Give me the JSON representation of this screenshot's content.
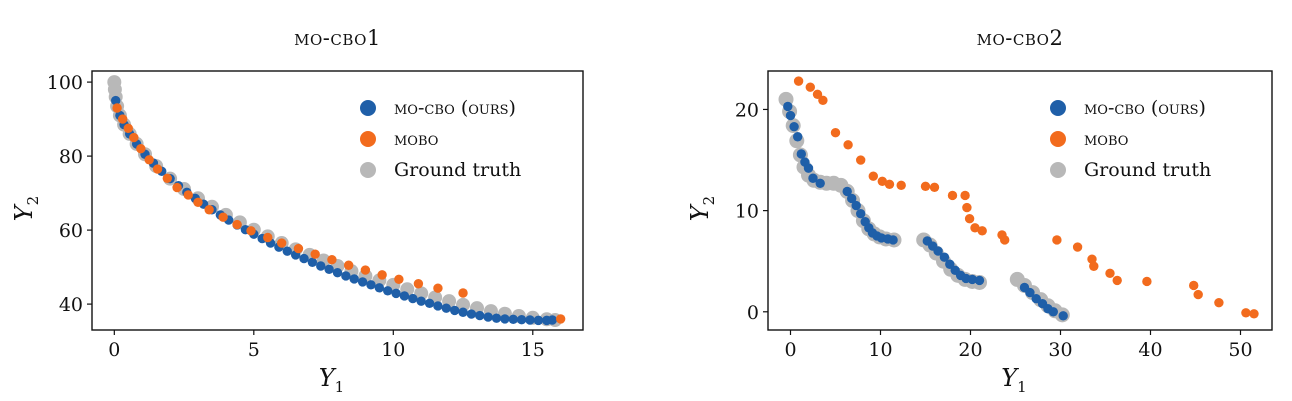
{
  "chart_data": [
    {
      "type": "scatter",
      "title": "MO-CBO1",
      "xlabel": "Y",
      "xlabel_sub": "1",
      "ylabel": "Y",
      "ylabel_sub": "2",
      "xlim": [
        -0.8,
        16.8
      ],
      "ylim": [
        33,
        103
      ],
      "xticks": [
        0,
        5,
        10,
        15
      ],
      "yticks": [
        40,
        60,
        80,
        100
      ],
      "legend_position": "top-right",
      "series": [
        {
          "name": "MO-CBO (ours)",
          "color": "#1f5fa8",
          "x": [
            0.05,
            0.2,
            0.35,
            0.55,
            0.8,
            1.1,
            1.4,
            1.7,
            2.0,
            2.3,
            2.6,
            2.9,
            3.2,
            3.5,
            3.8,
            4.1,
            4.4,
            4.7,
            5.0,
            5.3,
            5.6,
            5.9,
            6.2,
            6.5,
            6.8,
            7.1,
            7.4,
            7.7,
            8.0,
            8.3,
            8.6,
            8.9,
            9.2,
            9.5,
            9.8,
            10.1,
            10.4,
            10.7,
            11.0,
            11.3,
            11.6,
            11.9,
            12.2,
            12.5,
            12.8,
            13.1,
            13.4,
            13.7,
            14.0,
            14.3,
            14.6,
            14.9,
            15.2,
            15.5,
            15.7
          ],
          "y": [
            95.0,
            91.0,
            88.5,
            86.0,
            83.3,
            80.5,
            78.1,
            75.9,
            73.9,
            72.0,
            70.2,
            68.6,
            67.0,
            65.5,
            64.1,
            62.7,
            61.4,
            60.1,
            58.9,
            57.7,
            56.5,
            55.4,
            54.3,
            53.3,
            52.3,
            51.3,
            50.3,
            49.4,
            48.5,
            47.6,
            46.8,
            46.0,
            45.2,
            44.4,
            43.6,
            42.9,
            42.2,
            41.5,
            40.8,
            40.2,
            39.5,
            38.9,
            38.3,
            37.8,
            37.3,
            36.9,
            36.5,
            36.2,
            36.0,
            35.9,
            35.8,
            35.7,
            35.6,
            35.6,
            35.7
          ]
        },
        {
          "name": "MOBO",
          "color": "#f26b1d",
          "x": [
            0.1,
            0.3,
            0.5,
            0.7,
            0.95,
            1.25,
            1.55,
            1.9,
            2.25,
            2.65,
            3.0,
            3.4,
            3.9,
            4.4,
            4.9,
            5.5,
            6.0,
            6.6,
            7.2,
            7.8,
            8.4,
            9.0,
            9.6,
            10.2,
            10.9,
            11.6,
            12.5,
            16.0
          ],
          "y": [
            93.0,
            90.0,
            87.5,
            85.0,
            82.0,
            79.0,
            76.5,
            74.0,
            71.5,
            69.5,
            67.5,
            65.5,
            63.5,
            61.5,
            59.8,
            58.0,
            56.5,
            55.0,
            53.5,
            52.0,
            50.5,
            49.2,
            47.9,
            46.7,
            45.5,
            44.3,
            43.0,
            36.0
          ]
        },
        {
          "name": "Ground truth",
          "color": "#b8b8b8",
          "x": [
            0.0,
            0.02,
            0.05,
            0.1,
            0.2,
            0.35,
            0.55,
            0.8,
            1.1,
            1.5,
            2.0,
            2.5,
            3.0,
            3.5,
            4.0,
            4.5,
            5.0,
            5.5,
            6.0,
            6.5,
            7.0,
            7.5,
            8.0,
            8.5,
            9.0,
            9.5,
            10.0,
            10.5,
            11.0,
            11.5,
            12.0,
            12.5,
            13.0,
            13.5,
            14.0,
            14.5,
            15.0,
            15.5,
            15.8
          ],
          "y": [
            100.0,
            98.0,
            96.0,
            93.5,
            91.0,
            88.5,
            86.0,
            83.3,
            80.5,
            77.3,
            73.9,
            71.1,
            68.6,
            66.3,
            64.1,
            62.1,
            60.1,
            58.3,
            56.5,
            54.8,
            53.3,
            51.8,
            50.3,
            48.9,
            47.6,
            46.4,
            45.2,
            44.0,
            42.9,
            41.8,
            40.8,
            39.8,
            38.9,
            38.1,
            37.4,
            36.8,
            36.3,
            35.9,
            35.7
          ]
        }
      ]
    },
    {
      "type": "scatter",
      "title": "MO-CBO2",
      "xlabel": "Y",
      "xlabel_sub": "1",
      "ylabel": "Y",
      "ylabel_sub": "2",
      "xlim": [
        -2.5,
        53.5
      ],
      "ylim": [
        -1.8,
        23.8
      ],
      "xticks": [
        0,
        10,
        20,
        30,
        40,
        50
      ],
      "yticks": [
        0,
        10,
        20
      ],
      "legend_position": "top-right",
      "series": [
        {
          "name": "MO-CBO (ours)",
          "color": "#1f5fa8",
          "x": [
            -0.3,
            0.0,
            0.4,
            0.8,
            1.2,
            1.6,
            2.0,
            2.5,
            3.3,
            6.3,
            6.8,
            7.3,
            7.8,
            8.3,
            8.7,
            9.1,
            9.6,
            10.1,
            10.8,
            11.4,
            15.2,
            15.8,
            16.4,
            17.1,
            17.7,
            18.3,
            18.9,
            19.5,
            20.2,
            21.0,
            26.0,
            26.6,
            27.3,
            28.0,
            28.6,
            29.2,
            30.3
          ],
          "y": [
            20.3,
            19.4,
            18.3,
            17.3,
            15.6,
            14.8,
            14.2,
            13.2,
            12.7,
            11.9,
            11.2,
            10.5,
            9.7,
            8.9,
            8.3,
            7.8,
            7.5,
            7.3,
            7.2,
            7.1,
            7.0,
            6.5,
            6.0,
            5.4,
            4.7,
            4.1,
            3.6,
            3.3,
            3.2,
            3.1,
            2.4,
            1.9,
            1.3,
            0.8,
            0.3,
            0.0,
            -0.4
          ]
        },
        {
          "name": "MOBO",
          "color": "#f26b1d",
          "x": [
            0.9,
            2.2,
            3.0,
            3.6,
            5.0,
            6.4,
            7.8,
            9.2,
            10.2,
            11.0,
            12.3,
            15.0,
            16.0,
            18.0,
            19.4,
            19.6,
            19.9,
            20.5,
            21.3,
            23.5,
            23.8,
            29.6,
            31.9,
            33.5,
            33.7,
            35.5,
            36.3,
            39.6,
            44.8,
            45.3,
            47.6,
            50.6,
            51.5
          ],
          "y": [
            22.8,
            22.2,
            21.5,
            20.9,
            17.7,
            16.5,
            15.0,
            13.4,
            12.9,
            12.6,
            12.5,
            12.4,
            12.3,
            11.5,
            11.5,
            10.3,
            9.2,
            8.3,
            8.0,
            7.6,
            7.1,
            7.1,
            6.4,
            5.2,
            4.5,
            3.8,
            3.1,
            3.0,
            2.6,
            1.7,
            0.9,
            -0.1,
            -0.2
          ]
        },
        {
          "name": "Ground truth",
          "color": "#b8b8b8",
          "x": [
            -0.5,
            -0.1,
            0.3,
            0.7,
            1.1,
            1.5,
            2.0,
            2.6,
            3.3,
            4.0,
            4.8,
            5.6,
            6.3,
            6.9,
            7.5,
            8.1,
            8.7,
            9.3,
            9.9,
            10.6,
            11.5,
            14.8,
            15.5,
            16.2,
            17.0,
            17.8,
            18.6,
            19.4,
            20.2,
            21.0,
            25.2,
            26.0,
            26.9,
            27.8,
            28.6,
            29.4,
            30.2
          ],
          "y": [
            21.0,
            19.8,
            18.4,
            16.9,
            15.5,
            14.3,
            13.5,
            13.0,
            12.8,
            12.7,
            12.7,
            12.5,
            11.9,
            11.0,
            10.0,
            9.0,
            8.2,
            7.7,
            7.4,
            7.2,
            7.1,
            7.1,
            6.6,
            5.8,
            5.0,
            4.2,
            3.6,
            3.2,
            3.0,
            2.9,
            3.2,
            2.6,
            1.9,
            1.2,
            0.6,
            0.1,
            -0.3
          ]
        }
      ]
    }
  ]
}
